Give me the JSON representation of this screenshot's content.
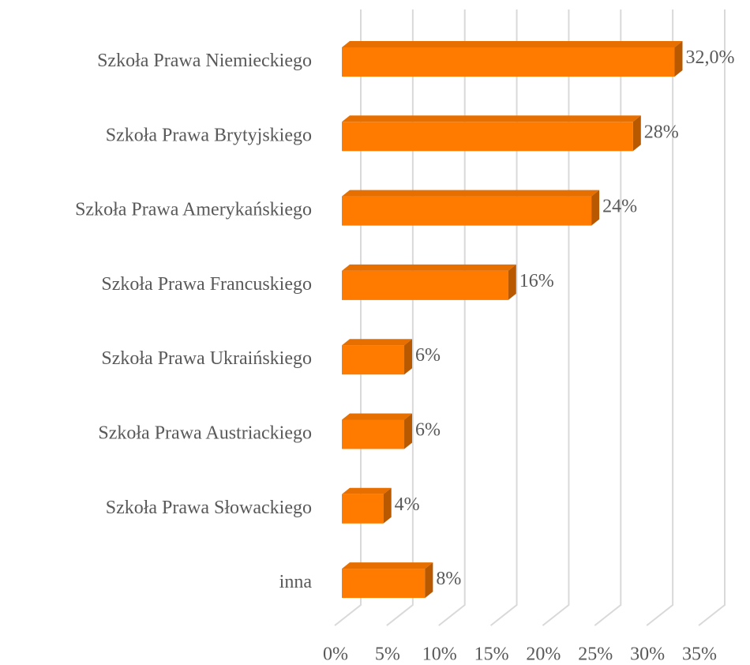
{
  "chart_data": {
    "type": "bar",
    "orientation": "horizontal",
    "categories": [
      "Szkoła Prawa Niemieckiego",
      "Szkoła Prawa Brytyjskiego",
      "Szkoła Prawa Amerykańskiego",
      "Szkoła Prawa Francuskiego",
      "Szkoła Prawa Ukraińskiego",
      "Szkoła Prawa Austriackiego",
      "Szkoła Prawa Słowackiego",
      "inna"
    ],
    "values": [
      32,
      28,
      24,
      16,
      6,
      6,
      4,
      8
    ],
    "value_labels": [
      "32,0%",
      "28%",
      "24%",
      "16%",
      "6%",
      "6%",
      "4%",
      "8%"
    ],
    "color": "#ff7b00",
    "xlim": [
      0,
      35
    ],
    "xticks": [
      {
        "value": 0,
        "label": "0%"
      },
      {
        "value": 5,
        "label": "5%"
      },
      {
        "value": 10,
        "label": "10%"
      },
      {
        "value": 15,
        "label": "15%"
      },
      {
        "value": 20,
        "label": "20%"
      },
      {
        "value": 25,
        "label": "25%"
      },
      {
        "value": 30,
        "label": "30%"
      },
      {
        "value": 35,
        "label": "35%"
      }
    ],
    "grid": true
  }
}
